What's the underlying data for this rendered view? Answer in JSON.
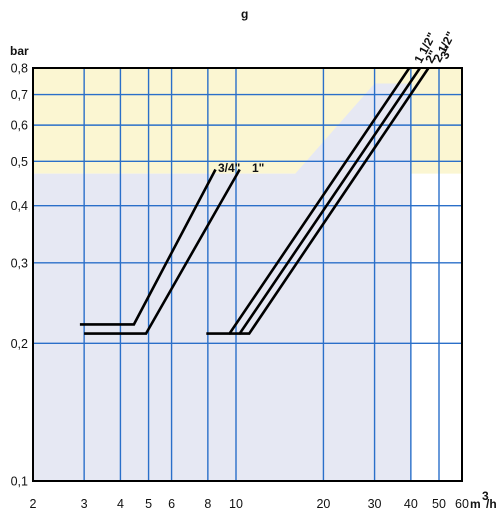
{
  "header_fragment": "g",
  "chart_data": {
    "type": "line",
    "xscale": "log",
    "yscale": "log",
    "xlim": [
      2,
      60
    ],
    "ylim": [
      0.1,
      0.8
    ],
    "ylabel": "bar",
    "xlabel": "m³/h",
    "xlabel_base": "m",
    "xlabel_sup": "3",
    "xlabel_tail": "/h",
    "x_ticks": [
      2,
      3,
      4,
      5,
      6,
      8,
      10,
      20,
      30,
      40,
      50,
      60
    ],
    "x_tick_labels": [
      "2",
      "3",
      "4",
      "5",
      "6",
      "8",
      "10",
      "20",
      "30",
      "40",
      "50",
      "60"
    ],
    "y_ticks": [
      0.1,
      0.2,
      0.3,
      0.4,
      0.5,
      0.6,
      0.7,
      0.8
    ],
    "y_tick_labels": [
      "0,1",
      "0,2",
      "0,3",
      "0,4",
      "0,5",
      "0,6",
      "0,7",
      "0,8"
    ],
    "grid": true,
    "regions": [
      {
        "name": "upper-zone",
        "color": "#fbf6d2"
      },
      {
        "name": "lower-zone",
        "color": "#e6e8f3"
      }
    ],
    "colors": {
      "grid": "#2a6fc9",
      "frame": "#000000",
      "curve": "#000000"
    },
    "series": [
      {
        "name": "3/4\"",
        "points": [
          [
            2.9,
            0.22
          ],
          [
            4.45,
            0.22
          ],
          [
            8.5,
            0.48
          ]
        ]
      },
      {
        "name": "1\"",
        "points": [
          [
            3.0,
            0.21
          ],
          [
            4.9,
            0.21
          ],
          [
            10.3,
            0.48
          ]
        ]
      },
      {
        "name": "1 1/2\"",
        "points": [
          [
            7.9,
            0.21
          ],
          [
            9.5,
            0.21
          ],
          [
            39.5,
            0.8
          ]
        ]
      },
      {
        "name": "2\"",
        "points": [
          [
            9.5,
            0.21
          ],
          [
            10.3,
            0.21
          ],
          [
            43,
            0.8
          ]
        ]
      },
      {
        "name": "2 1/2\"",
        "points": [
          [
            10.3,
            0.21
          ],
          [
            11.1,
            0.21
          ],
          [
            46,
            0.8
          ]
        ]
      }
    ],
    "top_labels": [
      "1 1/2\"",
      "2\"",
      "2 1/2\"",
      "3\""
    ],
    "small_labels": [
      "3/4\"",
      "1\""
    ]
  }
}
